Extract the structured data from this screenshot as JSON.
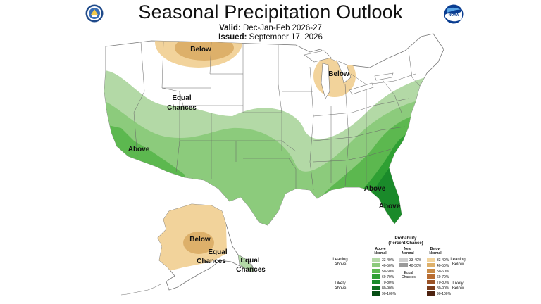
{
  "title": "Seasonal Precipitation Outlook",
  "valid_label": "Valid:",
  "valid_value": "Dec-Jan-Feb 2026-27",
  "issued_label": "Issued:",
  "issued_value": "September 17, 2026",
  "logos": {
    "left": "doc-seal",
    "right": "noaa-logo",
    "right_text": "NOAA"
  },
  "map_labels": {
    "below_north": "Below",
    "below_great_lakes": "Below",
    "equal_west_1": "Equal",
    "equal_west_2": "Chances",
    "above_west": "Above",
    "above_southeast_1": "Above",
    "above_southeast_2": "Above",
    "below_alaska": "Below",
    "equal_alaska_1": "Equal",
    "equal_alaska_2": "Chances",
    "equal_ak_se_1": "Equal",
    "equal_ak_se_2": "Chances"
  },
  "legend": {
    "title_1": "Probability",
    "title_2": "(Percent Chance)",
    "above_header_1": "Above",
    "above_header_2": "Normal",
    "near_header_1": "Near",
    "near_header_2": "Normal",
    "below_header_1": "Below",
    "below_header_2": "Normal",
    "leaning_above_1": "Leaning",
    "leaning_above_2": "Above",
    "likely_above_1": "Likely",
    "likely_above_2": "Above",
    "leaning_below_1": "Leaning",
    "leaning_below_2": "Below",
    "likely_below_1": "Likely",
    "likely_below_2": "Below",
    "equal_1": "Equal",
    "equal_2": "Chances",
    "above": [
      {
        "label": "33-40%",
        "color": "#b3d9a6"
      },
      {
        "label": "40-50%",
        "color": "#8ccb7c"
      },
      {
        "label": "50-60%",
        "color": "#5cb84f"
      },
      {
        "label": "60-70%",
        "color": "#2fa033"
      },
      {
        "label": "70-80%",
        "color": "#1a8a2a"
      },
      {
        "label": "80-90%",
        "color": "#0f6e20"
      },
      {
        "label": "90-100%",
        "color": "#064d14"
      }
    ],
    "near": [
      {
        "label": "33-40%",
        "color": "#cfcfcf"
      },
      {
        "label": "40-50%",
        "color": "#9a9a9a"
      }
    ],
    "below": [
      {
        "label": "33-40%",
        "color": "#f2d39b"
      },
      {
        "label": "40-50%",
        "color": "#ddb06a"
      },
      {
        "label": "50-60%",
        "color": "#c98b46"
      },
      {
        "label": "60-70%",
        "color": "#b86d32"
      },
      {
        "label": "70-80%",
        "color": "#9a5226"
      },
      {
        "label": "80-90%",
        "color": "#7a3c1c"
      },
      {
        "label": "90-100%",
        "color": "#4e2310"
      }
    ]
  }
}
